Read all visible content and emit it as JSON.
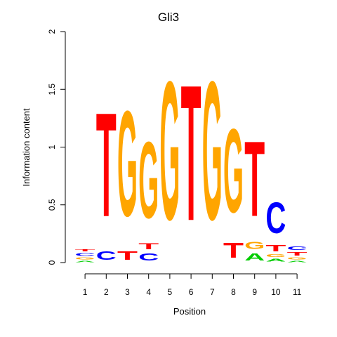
{
  "chart_data": {
    "type": "sequence-logo",
    "title": "Gli3",
    "xlabel": "Position",
    "ylabel": "Information content",
    "ylim": [
      0,
      2
    ],
    "yticks": [
      "0",
      "0.5",
      "1",
      "1.5",
      "2"
    ],
    "xticks": [
      "1",
      "2",
      "3",
      "4",
      "5",
      "6",
      "7",
      "8",
      "9",
      "10",
      "11"
    ],
    "colors": {
      "A": "#00cc00",
      "C": "#0000ff",
      "G": "#ffa500",
      "T": "#ff0000"
    },
    "positions": [
      {
        "pos": "1",
        "stack": [
          [
            "A",
            0.02
          ],
          [
            "G",
            0.03
          ],
          [
            "C",
            0.04
          ],
          [
            "T",
            0.03
          ]
        ]
      },
      {
        "pos": "2",
        "stack": [
          [
            "C",
            0.12
          ],
          [
            "T",
            1.44
          ]
        ]
      },
      {
        "pos": "3",
        "stack": [
          [
            "T",
            0.12
          ],
          [
            "G",
            1.46
          ]
        ]
      },
      {
        "pos": "4",
        "stack": [
          [
            "C",
            0.1
          ],
          [
            "T",
            0.08
          ],
          [
            "G",
            1.06
          ]
        ]
      },
      {
        "pos": "5",
        "stack": [
          [
            "G",
            1.92
          ]
        ]
      },
      {
        "pos": "6",
        "stack": [
          [
            "T",
            1.88
          ]
        ]
      },
      {
        "pos": "7",
        "stack": [
          [
            "G",
            1.92
          ]
        ]
      },
      {
        "pos": "8",
        "stack": [
          [
            "T",
            0.21
          ],
          [
            "G",
            1.16
          ]
        ]
      },
      {
        "pos": "9",
        "stack": [
          [
            "A",
            0.1
          ],
          [
            "G",
            0.1
          ],
          [
            "T",
            1.04
          ]
        ]
      },
      {
        "pos": "10",
        "stack": [
          [
            "A",
            0.04
          ],
          [
            "G",
            0.04
          ],
          [
            "T",
            0.09
          ],
          [
            "C",
            0.43
          ]
        ]
      },
      {
        "pos": "11",
        "stack": [
          [
            "A",
            0.02
          ],
          [
            "G",
            0.03
          ],
          [
            "T",
            0.05
          ],
          [
            "C",
            0.05
          ]
        ]
      }
    ]
  }
}
